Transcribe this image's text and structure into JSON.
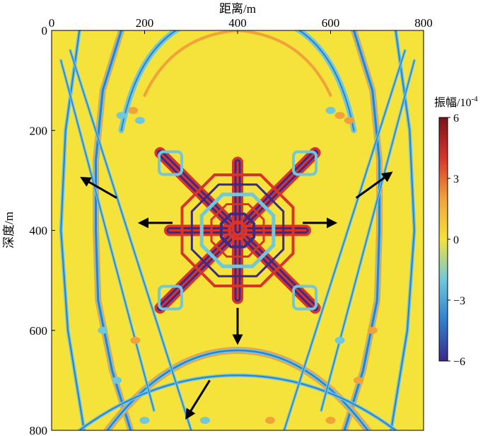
{
  "chart_data": {
    "type": "heatmap",
    "xlabel": "距离/m",
    "ylabel": "深度/m",
    "xlim": [
      0,
      800
    ],
    "ylim": [
      0,
      800
    ],
    "y_inverted": true,
    "x_ticks": [
      0,
      200,
      400,
      600,
      800
    ],
    "y_ticks": [
      0,
      200,
      400,
      600,
      800
    ],
    "x_tick_labels": [
      "0",
      "200",
      "400",
      "600",
      "800"
    ],
    "y_tick_labels": [
      "0",
      "200",
      "400",
      "600",
      "800"
    ],
    "x_axis_position": "top",
    "colorbar": {
      "title_text": "振幅/10",
      "title_exponent": "-4",
      "range": [
        -6,
        6
      ],
      "ticks": [
        6,
        3,
        0,
        -3,
        -6
      ],
      "tick_labels": [
        "6",
        "3",
        "0",
        "−3",
        "−6"
      ],
      "placement": "right",
      "colors": [
        "#3b2a8a",
        "#2f7fd0",
        "#6fc8dc",
        "#f5e23a",
        "#f2a23a",
        "#d8342a",
        "#7a1418"
      ]
    },
    "background_color": "#f5e23a",
    "source": {
      "x": 400,
      "y": 400
    },
    "features": {
      "source_pattern": "star-shaped, 8-armed radiation pattern centered at (400, 400)",
      "wavefronts": "curved reflections bending around the centre toward the left, right and bottom edges",
      "arrows": [
        {
          "from": [
            140,
            335
          ],
          "to": [
            65,
            295
          ]
        },
        {
          "from": [
            260,
            385
          ],
          "to": [
            190,
            385
          ]
        },
        {
          "from": [
            540,
            385
          ],
          "to": [
            610,
            385
          ]
        },
        {
          "from": [
            655,
            335
          ],
          "to": [
            730,
            285
          ]
        },
        {
          "from": [
            400,
            555
          ],
          "to": [
            400,
            625
          ]
        },
        {
          "from": [
            340,
            700
          ],
          "to": [
            290,
            775
          ]
        }
      ]
    }
  }
}
